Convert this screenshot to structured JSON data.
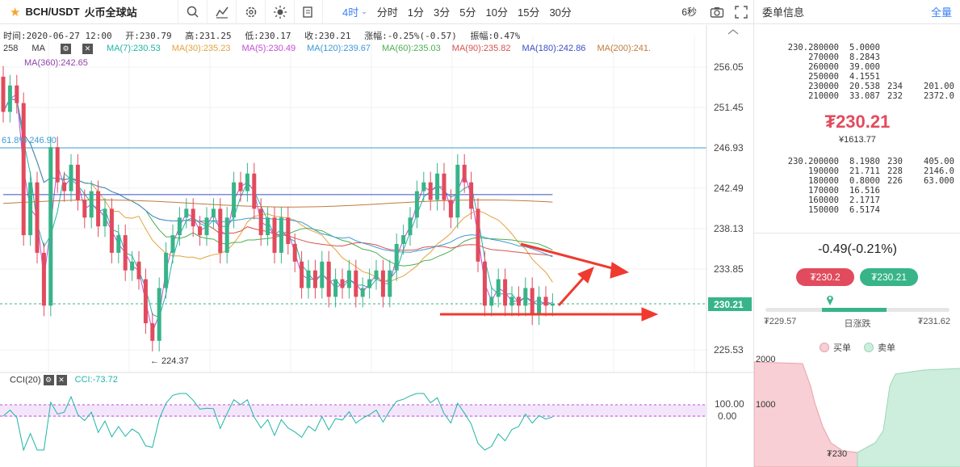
{
  "toolbar": {
    "symbol": "BCH/USDT",
    "exchange": "火币全球站",
    "intervals": [
      "4时",
      "分时",
      "1分",
      "3分",
      "5分",
      "10分",
      "15分",
      "30分"
    ],
    "active_interval": "4时",
    "countdown": "6秒"
  },
  "info": {
    "time": "时间:2020-06-27 12:00",
    "open": "开:230.79",
    "high": "高:231.25",
    "low": "低:230.17",
    "close": "收:230.21",
    "change": "涨幅:-0.25%(-0.57)",
    "amplitude": "振幅:0.47%"
  },
  "ma_row_prefix": "258",
  "ma_row_label": "MA",
  "ma": [
    {
      "label": "MA(7):230.53",
      "color": "#1fb5a7"
    },
    {
      "label": "MA(30):235.23",
      "color": "#e6a23c"
    },
    {
      "label": "MA(5):230.49",
      "color": "#c44cd6"
    },
    {
      "label": "MA(120):239.67",
      "color": "#3b9bd6"
    },
    {
      "label": "MA(60):235.03",
      "color": "#4caf50"
    },
    {
      "label": "MA(90):235.82",
      "color": "#d9534f"
    },
    {
      "label": "MA(180):242.86",
      "color": "#3b4fc4"
    },
    {
      "label": "MA(200):241.",
      "color": "#c07a3c"
    }
  ],
  "ma360": "MA(360):242.65",
  "fib_label": "61.8% 246.90",
  "low_marker": "← 224.37",
  "price_axis": [
    "256.05",
    "251.45",
    "246.93",
    "242.49",
    "238.13",
    "233.85",
    "230.21",
    "225.53"
  ],
  "current_price": "230.21",
  "cci": {
    "label": "CCI(20)",
    "value": "CCI:-73.72",
    "levels": [
      "100.00",
      "0.00"
    ]
  },
  "panel": {
    "title": "委单信息",
    "all": "全量",
    "asks": [
      {
        "price": "230.280000",
        "amount": "5.0000",
        "sum": "",
        "total": ""
      },
      {
        "price": "270000",
        "amount": "8.2843",
        "sum": "",
        "total": ""
      },
      {
        "price": "260000",
        "amount": "39.000",
        "sum": "",
        "total": ""
      },
      {
        "price": "250000",
        "amount": "4.1551",
        "sum": "",
        "total": ""
      },
      {
        "price": "230000",
        "amount": "20.538",
        "sum": "234",
        "total": "201.00"
      },
      {
        "price": "210000",
        "amount": "33.087",
        "sum": "232",
        "total": "2372.0"
      }
    ],
    "last_price": "₮230.21",
    "cny_price": "¥1613.77",
    "bids": [
      {
        "price": "230.200000",
        "amount": "8.1980",
        "sum": "230",
        "total": "405.00"
      },
      {
        "price": "190000",
        "amount": "21.711",
        "sum": "228",
        "total": "2146.0"
      },
      {
        "price": "180000",
        "amount": "0.8000",
        "sum": "226",
        "total": "63.000"
      },
      {
        "price": "170000",
        "amount": "16.516",
        "sum": "",
        "total": ""
      },
      {
        "price": "160000",
        "amount": "2.1717",
        "sum": "",
        "total": ""
      },
      {
        "price": "150000",
        "amount": "6.5174",
        "sum": "",
        "total": ""
      }
    ],
    "change": "-0.49(-0.21%)",
    "sell_button": "₮230.2",
    "buy_button": "₮230.21",
    "range_low": "₮229.57",
    "range_label": "日涨跌",
    "range_high": "₮231.62",
    "range_position": 0.35,
    "legend_buy": "买单",
    "legend_sell": "卖单",
    "depth_axis": [
      "2000",
      "1000"
    ],
    "depth_price": "₮230"
  },
  "colors": {
    "up": "#38b489",
    "down": "#e24b5d",
    "accent": "#3b82f6"
  }
}
